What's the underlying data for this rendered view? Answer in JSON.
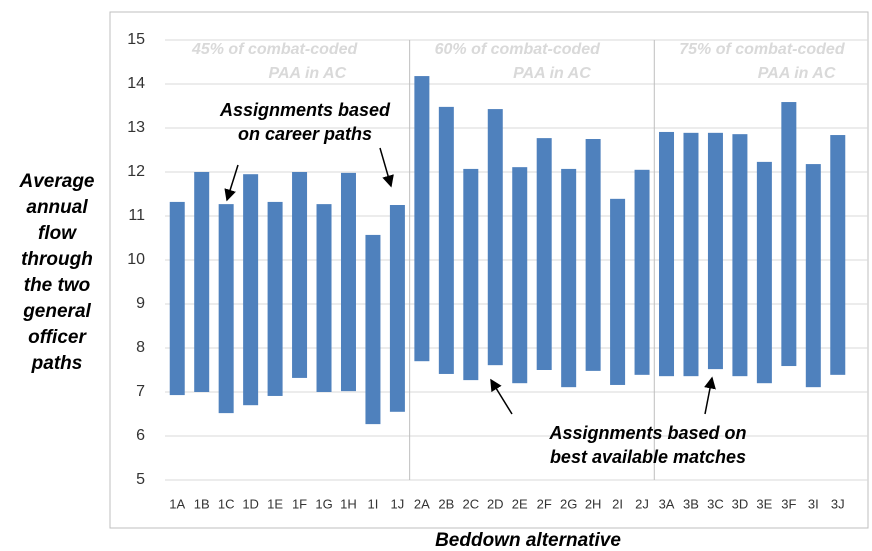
{
  "chart_data": {
    "type": "range_bar",
    "y_axis_title": [
      "Average",
      "annual",
      "flow",
      "through",
      "the two",
      "general",
      "officer",
      "paths"
    ],
    "x_axis_title": "Beddown alternative",
    "categories": [
      "1A",
      "1B",
      "1C",
      "1D",
      "1E",
      "1F",
      "1G",
      "1H",
      "1I",
      "1J",
      "2A",
      "2B",
      "2C",
      "2D",
      "2E",
      "2F",
      "2G",
      "2H",
      "2I",
      "2J",
      "3A",
      "3B",
      "3C",
      "3D",
      "3E",
      "3F",
      "3I",
      "3J"
    ],
    "low": [
      6.93,
      7.0,
      6.52,
      6.7,
      6.91,
      7.32,
      7.0,
      7.02,
      6.27,
      6.55,
      7.7,
      7.41,
      7.27,
      7.61,
      7.2,
      7.5,
      7.11,
      7.48,
      7.16,
      7.39,
      7.36,
      7.36,
      7.52,
      7.36,
      7.2,
      7.59,
      7.11,
      7.39
    ],
    "high": [
      11.32,
      12.0,
      11.27,
      11.95,
      11.32,
      12.0,
      11.27,
      11.98,
      10.57,
      11.25,
      14.18,
      13.48,
      12.07,
      13.43,
      12.11,
      12.77,
      12.07,
      12.75,
      11.39,
      12.05,
      12.91,
      12.89,
      12.89,
      12.86,
      12.23,
      13.59,
      12.18,
      12.84
    ],
    "color": "#4f81bd",
    "ylim": [
      5,
      15
    ],
    "yticks": [
      5,
      6,
      7,
      8,
      9,
      10,
      11,
      12,
      13,
      14,
      15
    ],
    "grid": true,
    "group_labels": [
      [
        "45% of combat-coded",
        "PAA in AC"
      ],
      [
        "60% of combat-coded",
        "PAA in AC"
      ],
      [
        "75% of combat-coded",
        "PAA in AC"
      ]
    ],
    "annotations": [
      [
        "Assignments based",
        "on career paths"
      ],
      [
        "Assignments based on",
        "best available matches"
      ]
    ]
  }
}
